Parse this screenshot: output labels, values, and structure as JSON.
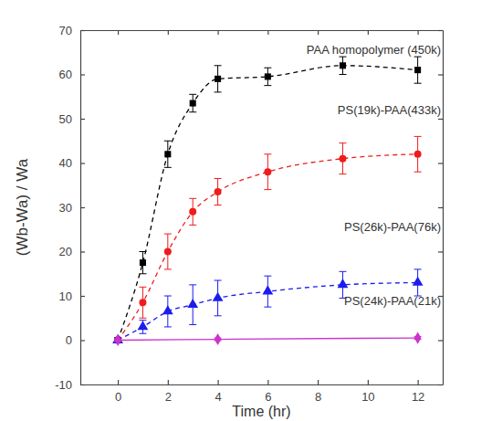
{
  "chart_data": {
    "type": "line",
    "x_label": "Time (hr)",
    "y_label": "(Wb-Wa) / Wa",
    "xlim": [
      -1.5,
      13
    ],
    "xticks": [
      0,
      2,
      4,
      6,
      8,
      10,
      12
    ],
    "ylim": [
      -10,
      70
    ],
    "yticks": [
      -10,
      0,
      10,
      20,
      30,
      40,
      50,
      60,
      70
    ],
    "grid": false,
    "series": [
      {
        "name": "PAA homopolymer (450k)",
        "color": "#000000",
        "marker": "square",
        "line_style": "dashed",
        "x": [
          0,
          1,
          2,
          3,
          4,
          6,
          9,
          12
        ],
        "values": [
          0,
          17.5,
          42,
          53.5,
          59,
          59.5,
          62,
          61
        ],
        "errors": [
          0.5,
          2.5,
          3,
          2,
          3,
          2,
          2,
          3
        ]
      },
      {
        "name": "PS(19k)-PAA(433k)",
        "color": "#ee1c1c",
        "marker": "circle",
        "line_style": "dashed",
        "x": [
          0,
          1,
          2,
          3,
          4,
          6,
          9,
          12
        ],
        "values": [
          0,
          8.5,
          20,
          29,
          33.5,
          38,
          41,
          42
        ],
        "errors": [
          0.5,
          3.5,
          4,
          3,
          3,
          4,
          3.5,
          4
        ]
      },
      {
        "name": "PS(26k)-PAA(76k)",
        "color": "#1c1cee",
        "marker": "triangle",
        "line_style": "dashed",
        "x": [
          0,
          1,
          2,
          3,
          4,
          6,
          9,
          12
        ],
        "values": [
          0,
          3,
          6.5,
          8,
          9.5,
          11,
          12.5,
          13
        ],
        "errors": [
          0.5,
          1.5,
          3.5,
          4.5,
          4,
          3.5,
          3,
          3
        ]
      },
      {
        "name": "PS(24k)-PAA(21k)",
        "color": "#cc33cc",
        "marker": "diamond",
        "line_style": "solid",
        "x": [
          0,
          4,
          12
        ],
        "values": [
          0,
          0.2,
          0.5
        ],
        "errors": [
          0.3,
          0.3,
          0.3
        ]
      }
    ]
  }
}
